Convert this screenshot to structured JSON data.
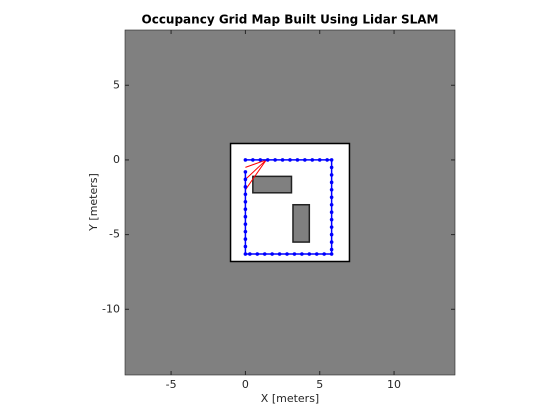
{
  "chart_data": {
    "type": "occupancy",
    "title": "Occupancy Grid Map Built Using Lidar SLAM",
    "x_label": "X [meters]",
    "y_label": "Y [meters]",
    "xlim": [
      -8.1,
      14.1
    ],
    "ylim": [
      -14.4,
      8.7
    ],
    "xticks": [
      -5,
      0,
      5,
      10
    ],
    "yticks": [
      -10,
      -5,
      0,
      5
    ],
    "background_color": "#808080",
    "free_color": "#ffffff",
    "free_area": {
      "x": [
        -1.0,
        7.0
      ],
      "y": [
        -6.8,
        1.1
      ]
    },
    "obstacles": [
      {
        "x": [
          0.5,
          3.1
        ],
        "y": [
          -2.2,
          -1.1
        ]
      },
      {
        "x": [
          3.2,
          4.3
        ],
        "y": [
          -5.5,
          -3.0
        ]
      }
    ],
    "obstacle_color": "#808080",
    "path": {
      "color": "#0000ff",
      "x": [
        0,
        0.5,
        1,
        1.5,
        2,
        2.5,
        3,
        3.5,
        4,
        4.5,
        5,
        5.5,
        5.8,
        5.8,
        5.8,
        5.8,
        5.8,
        5.8,
        5.8,
        5.8,
        5.8,
        5.8,
        5.8,
        5.8,
        5.8,
        5.8,
        5.3,
        4.8,
        4.3,
        3.8,
        3.3,
        2.8,
        2.3,
        1.8,
        1.3,
        0.8,
        0.3,
        0,
        0,
        0,
        0,
        0,
        0,
        0,
        0,
        0,
        0,
        0,
        0
      ],
      "y": [
        0,
        0,
        0,
        0,
        0,
        0,
        0,
        0,
        0,
        0,
        0,
        0,
        0,
        -0.5,
        -1,
        -1.5,
        -2,
        -2.5,
        -3,
        -3.5,
        -4,
        -4.5,
        -5,
        -5.5,
        -6,
        -6.3,
        -6.3,
        -6.3,
        -6.3,
        -6.3,
        -6.3,
        -6.3,
        -6.3,
        -6.3,
        -6.3,
        -6.3,
        -6.3,
        -6.3,
        -5.8,
        -5.3,
        -4.8,
        -4.3,
        -3.8,
        -3.3,
        -2.8,
        -2.3,
        -1.8,
        -1.3,
        -0.8
      ]
    },
    "scan": {
      "color": "#ff0000",
      "origin": [
        1.4,
        0
      ],
      "x": [
        0,
        0,
        0,
        0.5
      ],
      "y": [
        -2.0,
        -1.3,
        -0.5,
        0
      ]
    }
  }
}
